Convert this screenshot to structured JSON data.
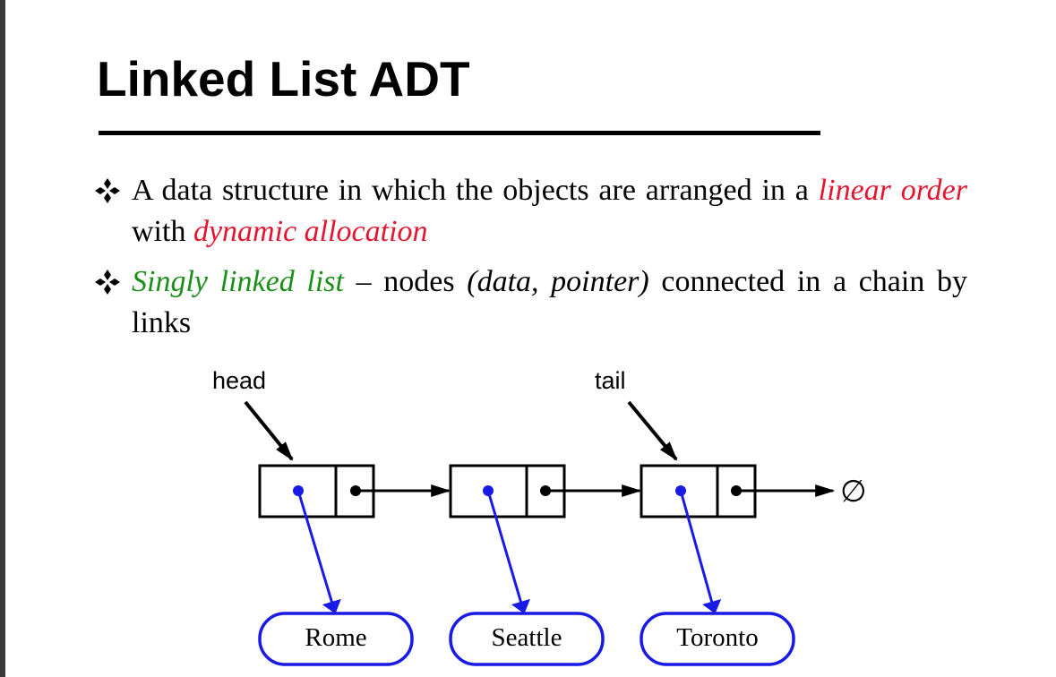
{
  "title": "Linked List ADT",
  "bullets": [
    {
      "a": "A data structure in which the objects are arranged in a ",
      "b": "linear order",
      "c": " with ",
      "d": "dynamic allocation"
    },
    {
      "a": "Singly linked list",
      "b": " – nodes ",
      "c": "(data, pointer)",
      "d": " connected in a chain by links"
    }
  ],
  "diagram": {
    "head_label": "head",
    "tail_label": "tail",
    "null_symbol": "∅",
    "nodes": [
      "Rome",
      "Seattle",
      "Toronto"
    ]
  },
  "colors": {
    "emphasis_red": "#e4162f",
    "emphasis_green": "#1a8f1a",
    "pointer_blue": "#1a1ae6"
  }
}
